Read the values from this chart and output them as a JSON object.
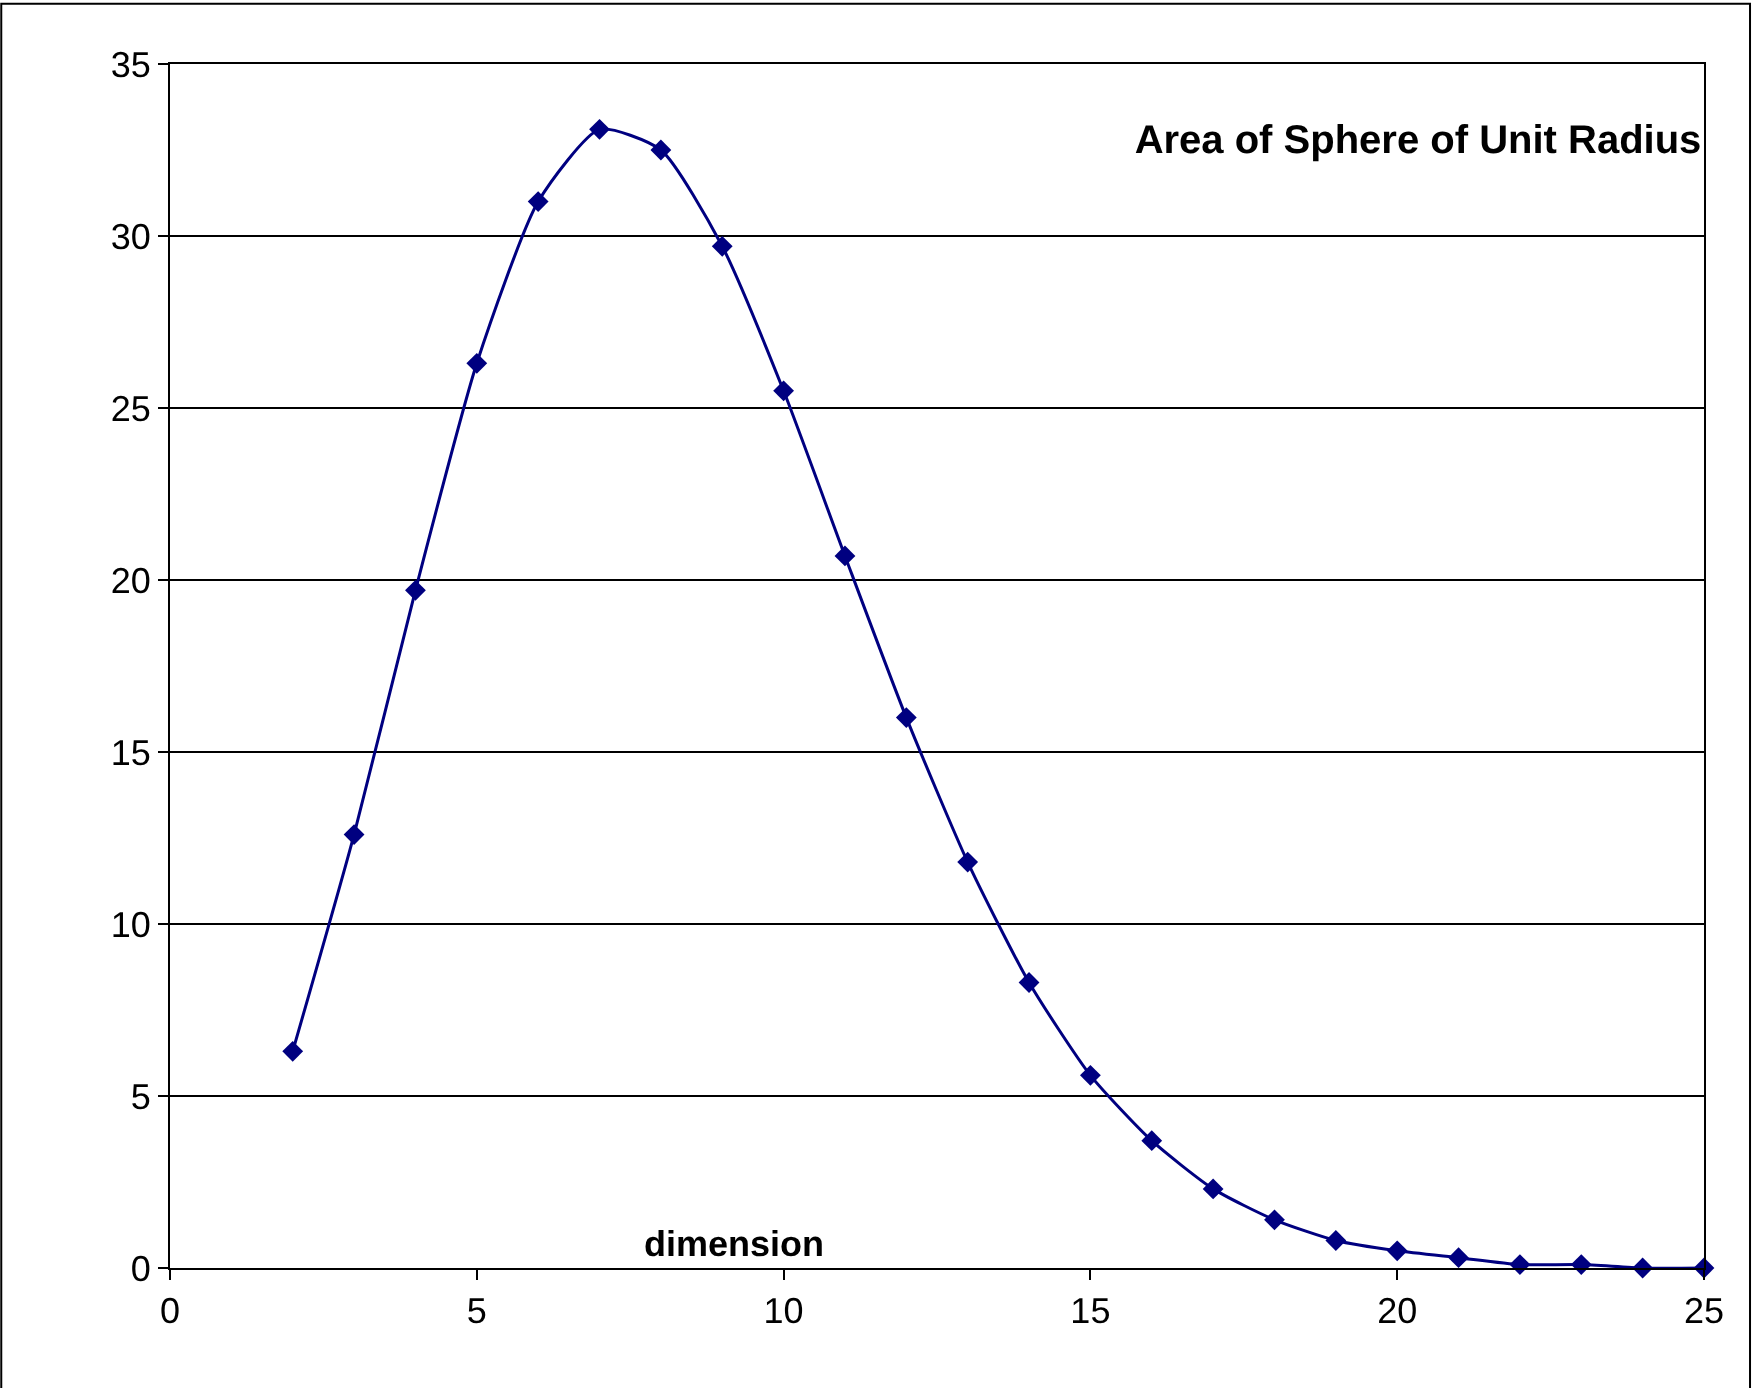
{
  "chart_data": {
    "type": "line",
    "title": "Area of Sphere of Unit Radius",
    "xlabel": "dimension",
    "x": [
      2,
      3,
      4,
      5,
      6,
      7,
      8,
      9,
      10,
      11,
      12,
      13,
      14,
      15,
      16,
      17,
      18,
      19,
      20,
      21,
      22,
      23,
      24,
      25
    ],
    "series": [
      {
        "color": "#000080",
        "values": [
          6.3,
          12.6,
          19.7,
          26.3,
          31.0,
          33.1,
          32.5,
          29.7,
          25.5,
          20.7,
          16.0,
          11.8,
          8.3,
          5.6,
          3.7,
          2.3,
          1.4,
          0.8,
          0.5,
          0.3,
          0.1,
          0.1,
          0.0,
          0.0
        ]
      }
    ],
    "xlim": [
      0,
      25
    ],
    "xticks": [
      0,
      5,
      10,
      15,
      20,
      25
    ],
    "ylim": [
      0,
      35
    ],
    "yticks": [
      0,
      5,
      10,
      15,
      20,
      25,
      30,
      35
    ],
    "grid": "y",
    "legend": false,
    "marker": "diamond",
    "line_style": "solid"
  }
}
